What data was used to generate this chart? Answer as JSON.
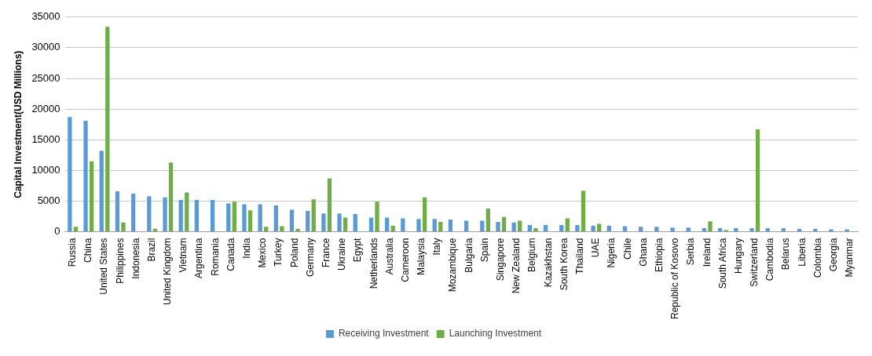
{
  "chart_data": {
    "type": "bar",
    "ylabel": "Capital Investment(USD Millions)",
    "categories": [
      "Russia",
      "China",
      "United States",
      "Philippines",
      "Indonesia",
      "Brazil",
      "United Kingdom",
      "Vietnam",
      "Argentina",
      "Romania",
      "Canada",
      "India",
      "Mexico",
      "Turkey",
      "Poland",
      "Germany",
      "France",
      "Ukraine",
      "Egypt",
      "Netherlands",
      "Australia",
      "Cameroon",
      "Malaysia",
      "Italy",
      "Mozambique",
      "Bulgaria",
      "Spain",
      "Singapore",
      "New Zealand",
      "Belgium",
      "Kazakhstan",
      "South Korea",
      "Thailand",
      "UAE",
      "Nigeria",
      "Chile",
      "Ghana",
      "Ethiopia",
      "Republic of Kosovo",
      "Serbia",
      "Ireland",
      "South Africa",
      "Hungary",
      "Switzerland",
      "Cambodia",
      "Belarus",
      "Liberia",
      "Colombia",
      "Georgia",
      "Myanmar"
    ],
    "series": [
      {
        "name": "Receiving Investment",
        "color": "#5b9bd5",
        "values": [
          18700,
          18100,
          13200,
          6600,
          6200,
          5800,
          5600,
          5200,
          5200,
          5200,
          4600,
          4500,
          4500,
          4300,
          3600,
          3400,
          3000,
          3000,
          2900,
          2300,
          2300,
          2200,
          2100,
          2100,
          2000,
          1800,
          1800,
          1600,
          1500,
          1100,
          1100,
          1100,
          1100,
          1000,
          1000,
          900,
          800,
          800,
          700,
          700,
          600,
          600,
          600,
          600,
          600,
          600,
          500,
          500,
          400,
          400
        ]
      },
      {
        "name": "Launching Investment",
        "color": "#70ad47",
        "values": [
          800,
          11500,
          33400,
          1500,
          null,
          500,
          11300,
          6400,
          null,
          0,
          4900,
          3500,
          800,
          900,
          500,
          5300,
          8700,
          2300,
          0,
          4900,
          1000,
          0,
          5600,
          1600,
          0,
          0,
          3800,
          2400,
          1800,
          600,
          0,
          2200,
          6700,
          1300,
          0,
          0,
          0,
          0,
          0,
          0,
          1700,
          300,
          null,
          16700,
          0,
          null,
          0,
          0,
          0,
          0
        ]
      }
    ],
    "ylim": [
      0,
      35000
    ],
    "yticks": [
      0,
      5000,
      10000,
      15000,
      20000,
      25000,
      30000,
      35000
    ],
    "grid": "y",
    "legend": "bottom"
  }
}
